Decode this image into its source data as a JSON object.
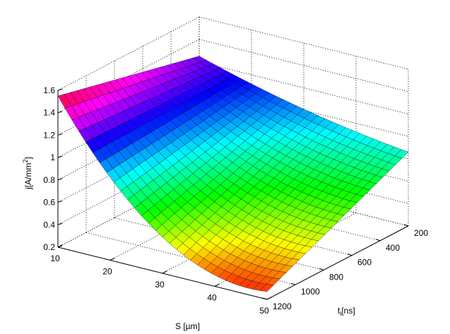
{
  "chart_data": {
    "type": "surface",
    "title": "",
    "xlabel": "S [µm]",
    "ylabel_main": "t",
    "ylabel_sub": "i",
    "ylabel_unit": "[ns]",
    "zlabel_main": "j[A/mm",
    "zlabel_sup": "2",
    "zlabel_end": "]",
    "xlim": [
      10,
      50
    ],
    "ylim": [
      200,
      1200
    ],
    "zlim": [
      0.2,
      1.6
    ],
    "xticks": [
      10,
      20,
      30,
      40,
      50
    ],
    "yticks": [
      200,
      400,
      600,
      800,
      1000,
      1200
    ],
    "zticks": [
      0.2,
      0.4,
      0.6,
      0.8,
      1,
      1.2,
      1.4,
      1.6
    ],
    "grid": true,
    "colormap": "hsv",
    "corner_values": {
      "S10_t200": 1.25,
      "S10_t1200": 1.55,
      "S50_t200": 0.86,
      "S50_t1200": 0.27
    }
  }
}
